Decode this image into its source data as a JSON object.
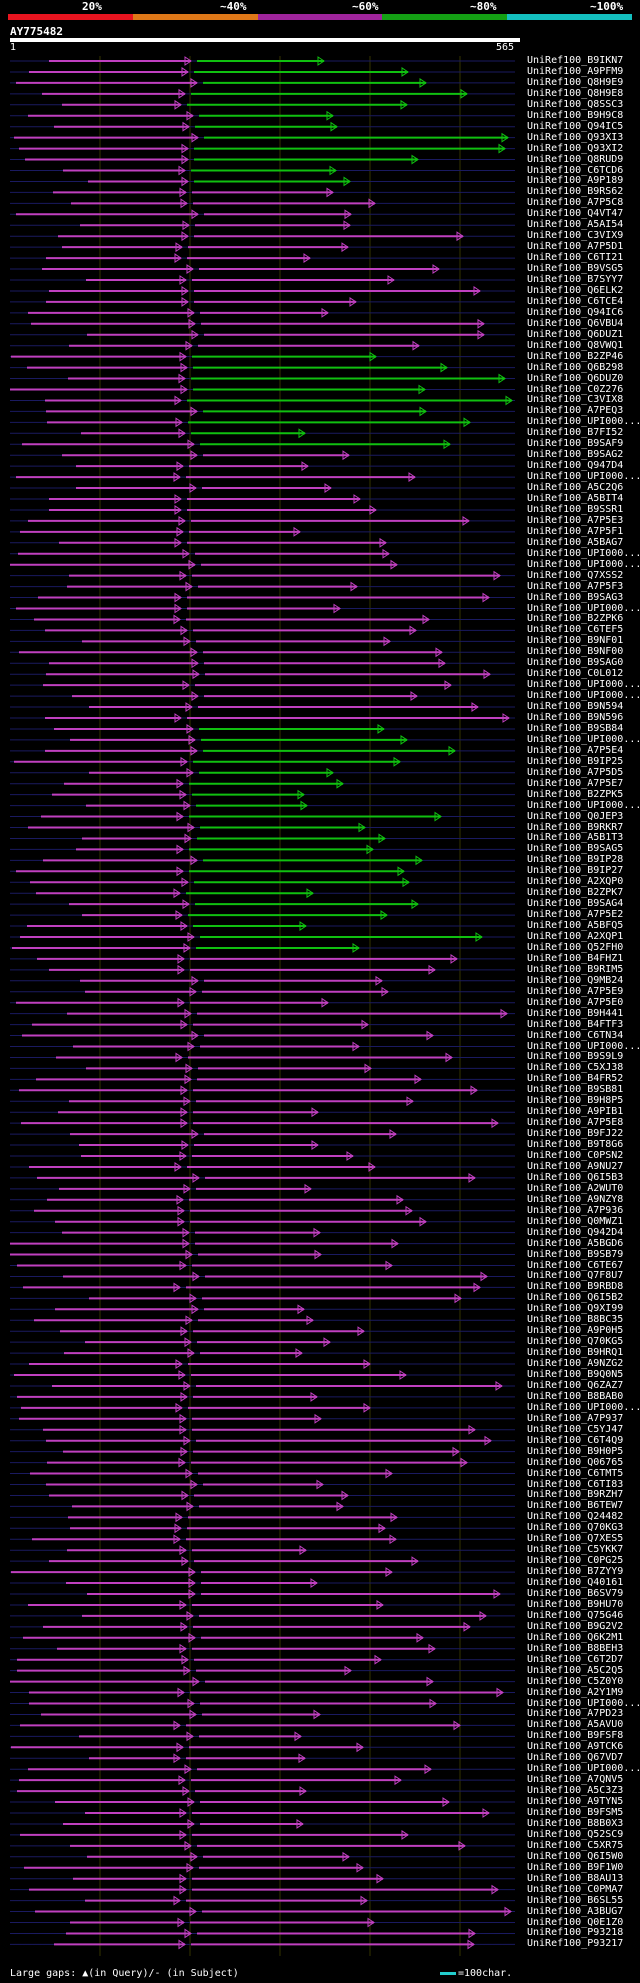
{
  "legend": [
    {
      "label": "20%",
      "color": "#e8141f"
    },
    {
      "label": "~40%",
      "color": "#e07818"
    },
    {
      "label": "~60%",
      "color": "#a0249c"
    },
    {
      "label": "~80%",
      "color": "#14a014"
    },
    {
      "label": "~100%",
      "color": "#14c0c0"
    }
  ],
  "query": {
    "id": "AY775482",
    "start": "1",
    "end": "565"
  },
  "footer": {
    "gaps_text": "Large gaps: ▲(in Query)/- (in Subject)",
    "scale_text": "=100char."
  },
  "hits": [
    "UniRef100_B9IKN7",
    "UniRef100_A9PFM9",
    "UniRef100_Q8H9E9",
    "UniRef100_Q8H9E8",
    "UniRef100_Q8SSC3",
    "UniRef100_B9H9C8",
    "UniRef100_Q94IC5",
    "UniRef100_Q93XI3",
    "UniRef100_Q93XI2",
    "UniRef100_Q8RUD9",
    "UniRef100_C6TCD6",
    "UniRef100_A9P189",
    "UniRef100_B9RS62",
    "UniRef100_A7P5C8",
    "UniRef100_Q4VT47",
    "UniRef100_A5AI54",
    "UniRef100_C3VIX9",
    "UniRef100_A7P5D1",
    "UniRef100_C6TI21",
    "UniRef100_B9VSG5",
    "UniRef100_B7SYY7",
    "UniRef100_Q6ELK2",
    "UniRef100_C6TCE4",
    "UniRef100_Q94IC6",
    "UniRef100_Q6VBU4",
    "UniRef100_Q6DUZ1",
    "UniRef100_Q8VWQ1",
    "UniRef100_B2ZP46",
    "UniRef100_Q6B298",
    "UniRef100_Q6DUZ0",
    "UniRef100_C0Z276",
    "UniRef100_C3VIX8",
    "UniRef100_A7PEQ3",
    "UniRef100_UPI000...",
    "UniRef100_B7FI52",
    "UniRef100_B9SAF9",
    "UniRef100_B9SAG2",
    "UniRef100_Q947D4",
    "UniRef100_UPI000...",
    "UniRef100_A5C2Q6",
    "UniRef100_A5BIT4",
    "UniRef100_B9SSR1",
    "UniRef100_A7P5E3",
    "UniRef100_A7P5F1",
    "UniRef100_A5BAG7",
    "UniRef100_UPI000...",
    "UniRef100_UPI000...",
    "UniRef100_Q7XSS2",
    "UniRef100_A7P5F3",
    "UniRef100_B9SAG3",
    "UniRef100_UPI000...",
    "UniRef100_B2ZPK6",
    "UniRef100_C6TEF5",
    "UniRef100_B9NF01",
    "UniRef100_B9NF00",
    "UniRef100_B9SAG0",
    "UniRef100_C0L012",
    "UniRef100_UPI000...",
    "UniRef100_UPI000...",
    "UniRef100_B9N594",
    "UniRef100_B9N596",
    "UniRef100_B9SB84",
    "UniRef100_UPI000...",
    "UniRef100_A7P5E4",
    "UniRef100_B9IP25",
    "UniRef100_A7P5D5",
    "UniRef100_A7P5E7",
    "UniRef100_B2ZPK5",
    "UniRef100_UPI000...",
    "UniRef100_Q0JEP3",
    "UniRef100_B9RKR7",
    "UniRef100_A5B1T3",
    "UniRef100_B9SAG5",
    "UniRef100_B9IP28",
    "UniRef100_B9IP27",
    "UniRef100_A2XQP0",
    "UniRef100_B2ZPK7",
    "UniRef100_B9SAG4",
    "UniRef100_A7P5E2",
    "UniRef100_A5BFQ5",
    "UniRef100_A2XQP1",
    "UniRef100_Q52FH0",
    "UniRef100_B4FHZ1",
    "UniRef100_B9RIM5",
    "UniRef100_Q9MB24",
    "UniRef100_A7P5E9",
    "UniRef100_A7P5E0",
    "UniRef100_B9H441",
    "UniRef100_B4FTF3",
    "UniRef100_C6TN34",
    "UniRef100_UPI000...",
    "UniRef100_B9S9L9",
    "UniRef100_C5XJ38",
    "UniRef100_B4FR52",
    "UniRef100_B9SB81",
    "UniRef100_B9H8P5",
    "UniRef100_A9PIB1",
    "UniRef100_A7P5E8",
    "UniRef100_B9FJ22",
    "UniRef100_B9T8G6",
    "UniRef100_C0PSN2",
    "UniRef100_A9NU27",
    "UniRef100_Q6I5B3",
    "UniRef100_A2WUT0",
    "UniRef100_A9NZY8",
    "UniRef100_A7P936",
    "UniRef100_Q0MWZ1",
    "UniRef100_Q942D4",
    "UniRef100_A5BGD6",
    "UniRef100_B9SB79",
    "UniRef100_C6TE67",
    "UniRef100_Q7F8U7",
    "UniRef100_B9RBD8",
    "UniRef100_Q6I5B2",
    "UniRef100_Q9XI99",
    "UniRef100_B8BC35",
    "UniRef100_A9P0H5",
    "UniRef100_Q70KG5",
    "UniRef100_B9HRQ1",
    "UniRef100_A9NZG2",
    "UniRef100_B9Q0N5",
    "UniRef100_Q6ZAZ7",
    "UniRef100_B8BAB0",
    "UniRef100_UPI000...",
    "UniRef100_A7P937",
    "UniRef100_C5YJ47",
    "UniRef100_C6T4Q9",
    "UniRef100_B9H0P5",
    "UniRef100_Q06765",
    "UniRef100_C6TMT5",
    "UniRef100_C6TI83",
    "UniRef100_B9RZH7",
    "UniRef100_B6TEW7",
    "UniRef100_Q24482",
    "UniRef100_Q70KG3",
    "UniRef100_Q7XES5",
    "UniRef100_C5YKK7",
    "UniRef100_C0PG25",
    "UniRef100_B7ZYY9",
    "UniRef100_Q40161",
    "UniRef100_B6SV79",
    "UniRef100_B9HU70",
    "UniRef100_Q75G46",
    "UniRef100_B9G2V2",
    "UniRef100_Q6K2M1",
    "UniRef100_B8BEH3",
    "UniRef100_C6T2D7",
    "UniRef100_A5C2Q5",
    "UniRef100_C5Z0Y0",
    "UniRef100_A2Y1M9",
    "UniRef100_UPI000...",
    "UniRef100_A7PD23",
    "UniRef100_A5AVU0",
    "UniRef100_B9FSF8",
    "UniRef100_A9TCK6",
    "UniRef100_Q67VD7",
    "UniRef100_UPI000...",
    "UniRef100_A7QNV5",
    "UniRef100_A5C3Z3",
    "UniRef100_A9TYN5",
    "UniRef100_B9FSM5",
    "UniRef100_B8B0X3",
    "UniRef100_Q52SC9",
    "UniRef100_C5XR75",
    "UniRef100_Q6I5W0",
    "UniRef100_B9F1W0",
    "UniRef100_B8AU13",
    "UniRef100_C0PMA7",
    "UniRef100_B6SL55",
    "UniRef100_A3BUG7",
    "UniRef100_Q0E1Z0",
    "UniRef100_P93218",
    "UniRef100_P93217"
  ]
}
